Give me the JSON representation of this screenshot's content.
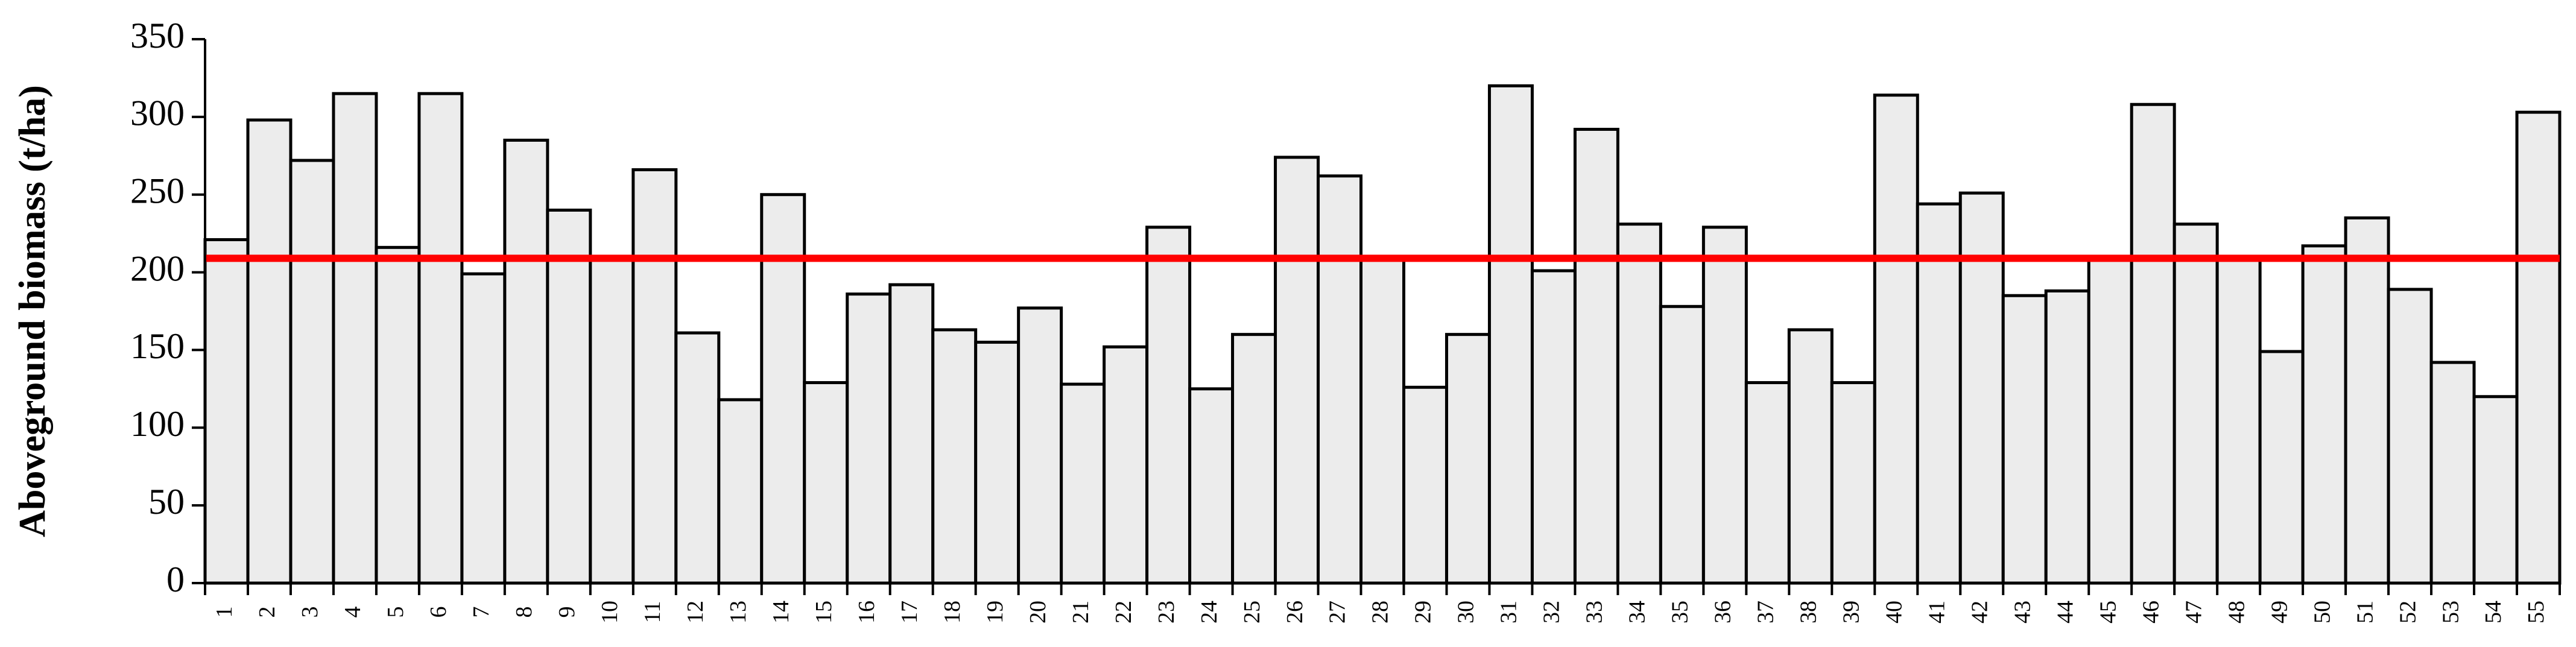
{
  "chart_data": {
    "type": "bar",
    "y_label": "Aboveground biomass (t/ha)",
    "categories": [
      "1",
      "2",
      "3",
      "4",
      "5",
      "6",
      "7",
      "8",
      "9",
      "10",
      "11",
      "12",
      "13",
      "14",
      "15",
      "16",
      "17",
      "18",
      "19",
      "20",
      "21",
      "22",
      "23",
      "24",
      "25",
      "26",
      "27",
      "28",
      "29",
      "30",
      "31",
      "32",
      "33",
      "34",
      "35",
      "36",
      "37",
      "38",
      "39",
      "40",
      "41",
      "42",
      "43",
      "44",
      "45",
      "46",
      "47",
      "48",
      "49",
      "50",
      "51",
      "52",
      "53",
      "54",
      "55"
    ],
    "values": [
      221,
      298,
      272,
      315,
      216,
      315,
      199,
      285,
      240,
      208,
      266,
      161,
      118,
      250,
      129,
      186,
      192,
      163,
      155,
      177,
      128,
      152,
      229,
      125,
      160,
      274,
      262,
      208,
      126,
      160,
      320,
      201,
      292,
      231,
      178,
      229,
      129,
      163,
      129,
      314,
      244,
      251,
      185,
      188,
      208,
      308,
      231,
      208,
      149,
      217,
      235,
      189,
      142,
      120,
      303
    ],
    "color": "#ececec",
    "reference_line": {
      "value": 209,
      "color": "#ff0000"
    },
    "ylim": [
      0,
      350
    ],
    "yticks": [
      0,
      50,
      100,
      150,
      200,
      250,
      300,
      350
    ],
    "grid": false
  }
}
